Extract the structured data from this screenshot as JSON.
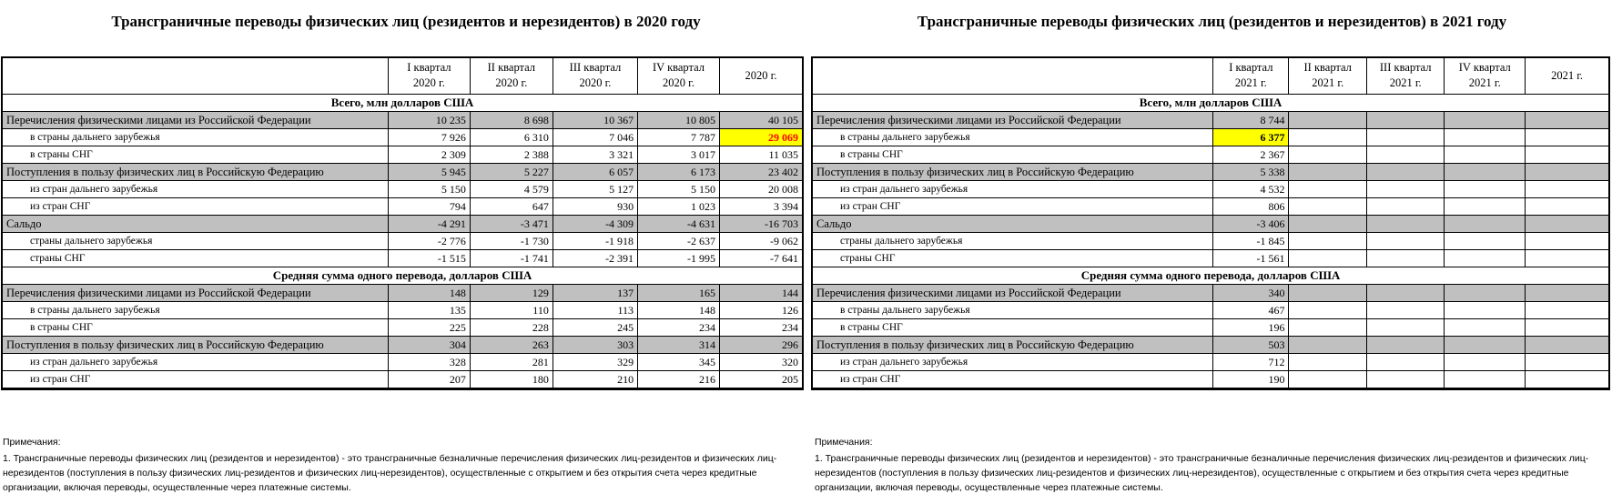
{
  "left": {
    "title": "Трансграничные переводы физических лиц (резидентов и нерезидентов) в 2020 году",
    "headers": [
      "I квартал 2020 г.",
      "II квартал 2020 г.",
      "III квартал 2020 г.",
      "IV квартал 2020 г.",
      "2020 г."
    ],
    "headers_l1": [
      "I квартал",
      "II квартал",
      "III квартал",
      "IV квартал",
      "2020 г."
    ],
    "headers_l2": [
      "2020 г.",
      "2020 г.",
      "2020 г.",
      "2020 г.",
      ""
    ],
    "sections": [
      {
        "title": "Всего, млн долларов США",
        "rows": [
          {
            "label": "Перечисления физическими лицами из Российской Федерации",
            "main": true,
            "values": [
              "10 235",
              "8 698",
              "10 367",
              "10 805",
              "40 105"
            ]
          },
          {
            "label": "в страны дальнего зарубежья",
            "main": false,
            "values": [
              "7 926",
              "6 310",
              "7 046",
              "7 787",
              "29 069"
            ]
          },
          {
            "label": "в страны СНГ",
            "main": false,
            "values": [
              "2 309",
              "2 388",
              "3 321",
              "3 017",
              "11 035"
            ]
          },
          {
            "label": "Поступления в пользу физических лиц в Российскую Федерацию",
            "main": true,
            "values": [
              "5 945",
              "5 227",
              "6 057",
              "6 173",
              "23 402"
            ]
          },
          {
            "label": "из стран дальнего зарубежья",
            "main": false,
            "values": [
              "5 150",
              "4 579",
              "5 127",
              "5 150",
              "20 008"
            ]
          },
          {
            "label": "из стран СНГ",
            "main": false,
            "values": [
              "794",
              "647",
              "930",
              "1 023",
              "3 394"
            ]
          },
          {
            "label": "Сальдо",
            "main": true,
            "values": [
              "-4 291",
              "-3 471",
              "-4 309",
              "-4 631",
              "-16 703"
            ]
          },
          {
            "label": "страны дальнего зарубежья",
            "main": false,
            "values": [
              "-2 776",
              "-1 730",
              "-1 918",
              "-2 637",
              "-9 062"
            ]
          },
          {
            "label": "страны СНГ",
            "main": false,
            "values": [
              "-1 515",
              "-1 741",
              "-2 391",
              "-1 995",
              "-7 641"
            ]
          }
        ]
      },
      {
        "title": "Средняя сумма одного перевода, долларов США",
        "rows": [
          {
            "label": "Перечисления физическими лицами из Российской Федерации",
            "main": true,
            "values": [
              "148",
              "129",
              "137",
              "165",
              "144"
            ]
          },
          {
            "label": "в страны дальнего зарубежья",
            "main": false,
            "values": [
              "135",
              "110",
              "113",
              "148",
              "126"
            ]
          },
          {
            "label": "в страны СНГ",
            "main": false,
            "values": [
              "225",
              "228",
              "245",
              "234",
              "234"
            ]
          },
          {
            "label": "Поступления в пользу физических лиц в Российскую Федерацию",
            "main": true,
            "values": [
              "304",
              "263",
              "303",
              "314",
              "296"
            ]
          },
          {
            "label": "из стран дальнего зарубежья",
            "main": false,
            "values": [
              "328",
              "281",
              "329",
              "345",
              "320"
            ]
          },
          {
            "label": "из стран СНГ",
            "main": false,
            "values": [
              "207",
              "180",
              "210",
              "216",
              "205"
            ]
          }
        ]
      }
    ],
    "highlight": {
      "section": 0,
      "row": 1,
      "col": 4,
      "color": "#ffff00",
      "text_color": "#ff0000"
    },
    "notes_heading": "Примечания:",
    "notes_text": "1. Трансграничные переводы физических лиц (резидентов и нерезидентов) - это трансграничные безналичные перечисления физических лиц-резидентов и физических лиц-нерезидентов (поступления в пользу физических лиц-резидентов и физических лиц-нерезидентов), осуществленные с открытием и без открытия счета через кредитные организации, включая переводы, осуществленные через платежные системы."
  },
  "right": {
    "title": "Трансграничные переводы физических лиц (резидентов и нерезидентов) в 2021 году",
    "headers_l1": [
      "I квартал",
      "II квартал",
      "III квартал",
      "IV квартал",
      "2021 г."
    ],
    "headers_l2": [
      "2021 г.",
      "2021 г.",
      "2021 г.",
      "2021 г.",
      ""
    ],
    "sections": [
      {
        "title": "Всего, млн долларов США",
        "rows": [
          {
            "label": "Перечисления физическими лицами из Российской Федерации",
            "main": true,
            "values": [
              "8 744",
              "",
              "",
              "",
              ""
            ]
          },
          {
            "label": "в страны дальнего зарубежья",
            "main": false,
            "values": [
              "6 377",
              "",
              "",
              "",
              ""
            ]
          },
          {
            "label": "в страны СНГ",
            "main": false,
            "values": [
              "2 367",
              "",
              "",
              "",
              ""
            ]
          },
          {
            "label": "Поступления в пользу физических лиц в Российскую Федерацию",
            "main": true,
            "values": [
              "5 338",
              "",
              "",
              "",
              ""
            ]
          },
          {
            "label": "из стран дальнего зарубежья",
            "main": false,
            "values": [
              "4 532",
              "",
              "",
              "",
              ""
            ]
          },
          {
            "label": "из стран СНГ",
            "main": false,
            "values": [
              "806",
              "",
              "",
              "",
              ""
            ]
          },
          {
            "label": "Сальдо",
            "main": true,
            "values": [
              "-3 406",
              "",
              "",
              "",
              ""
            ]
          },
          {
            "label": "страны дальнего зарубежья",
            "main": false,
            "values": [
              "-1 845",
              "",
              "",
              "",
              ""
            ]
          },
          {
            "label": "страны СНГ",
            "main": false,
            "values": [
              "-1 561",
              "",
              "",
              "",
              ""
            ]
          }
        ]
      },
      {
        "title": "Средняя сумма одного перевода, долларов США",
        "rows": [
          {
            "label": "Перечисления физическими лицами из Российской Федерации",
            "main": true,
            "values": [
              "340",
              "",
              "",
              "",
              ""
            ]
          },
          {
            "label": "в страны дальнего зарубежья",
            "main": false,
            "values": [
              "467",
              "",
              "",
              "",
              ""
            ]
          },
          {
            "label": "в страны СНГ",
            "main": false,
            "values": [
              "196",
              "",
              "",
              "",
              ""
            ]
          },
          {
            "label": "Поступления в пользу физических лиц в Российскую Федерацию",
            "main": true,
            "values": [
              "503",
              "",
              "",
              "",
              ""
            ]
          },
          {
            "label": "из стран дальнего зарубежья",
            "main": false,
            "values": [
              "712",
              "",
              "",
              "",
              ""
            ]
          },
          {
            "label": "из стран СНГ",
            "main": false,
            "values": [
              "190",
              "",
              "",
              "",
              ""
            ]
          }
        ]
      }
    ],
    "highlight": {
      "section": 0,
      "row": 1,
      "col": 0,
      "color": "#ffff00",
      "text_color": "#000000"
    },
    "notes_heading": "Примечания:",
    "notes_text": "1. Трансграничные переводы физических лиц (резидентов и нерезидентов) - это трансграничные безналичные перечисления физических лиц-резидентов и физических лиц-нерезидентов (поступления в пользу физических лиц-резидентов и физических лиц-нерезидентов), осуществленные с открытием и без открытия счета через кредитные организации, включая переводы, осуществленные через платежные системы."
  }
}
